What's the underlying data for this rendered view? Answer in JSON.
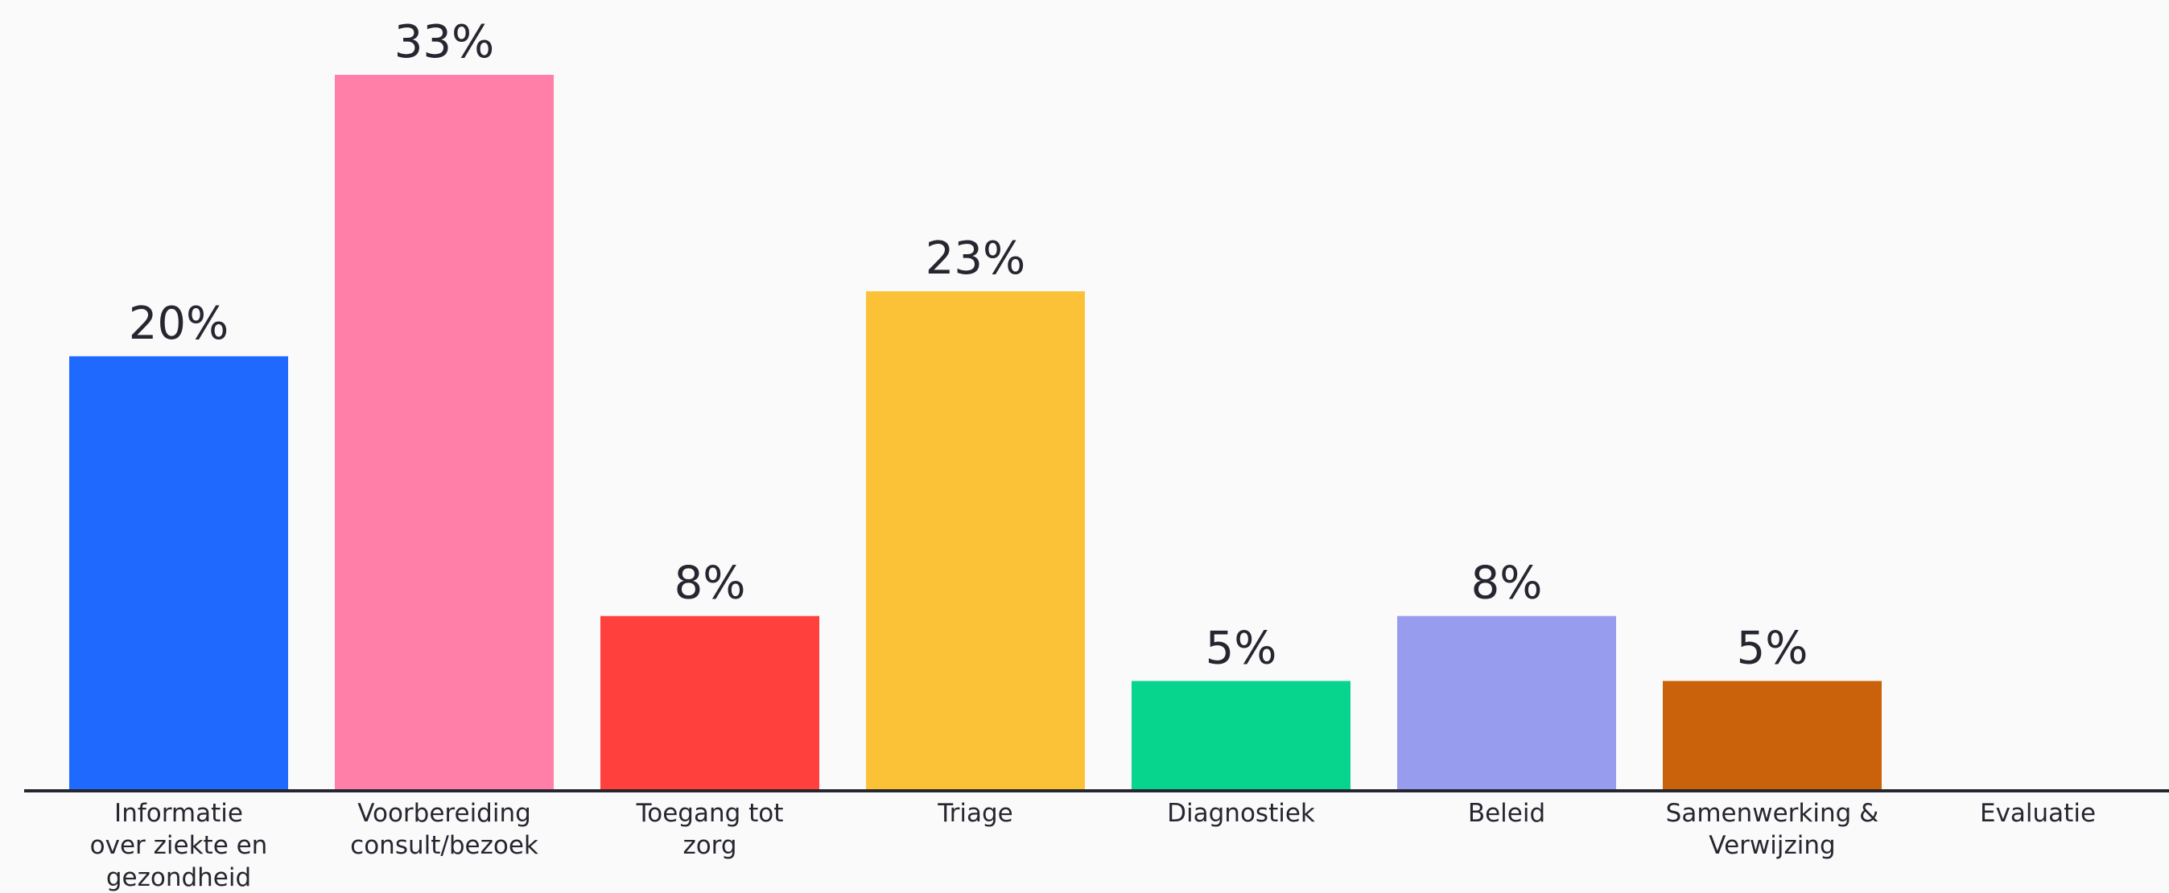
{
  "chart_data": {
    "type": "bar",
    "title": "",
    "xlabel": "",
    "ylabel": "",
    "ylim": [
      0,
      33
    ],
    "grid": false,
    "legend": "none",
    "categories": [
      [
        "Informatie",
        "over ziekte en",
        "gezondheid"
      ],
      [
        "Voorbereiding",
        "consult/bezoek"
      ],
      [
        "Toegang tot",
        "zorg"
      ],
      [
        "Triage"
      ],
      [
        "Diagnostiek"
      ],
      [
        "Beleid"
      ],
      [
        "Samenwerking &",
        "Verwijzing"
      ],
      [
        "Evaluatie"
      ]
    ],
    "values": [
      20,
      33,
      8,
      23,
      5,
      8,
      5,
      0
    ],
    "value_labels": [
      "20%",
      "33%",
      "8%",
      "23%",
      "5%",
      "8%",
      "5%",
      ""
    ],
    "colors": [
      "#1f69ff",
      "#ff7fa9",
      "#ff403d",
      "#fbc238",
      "#07d58e",
      "#989cef",
      "#c9620a",
      "#cccccc"
    ],
    "axis_color": "#262630"
  }
}
